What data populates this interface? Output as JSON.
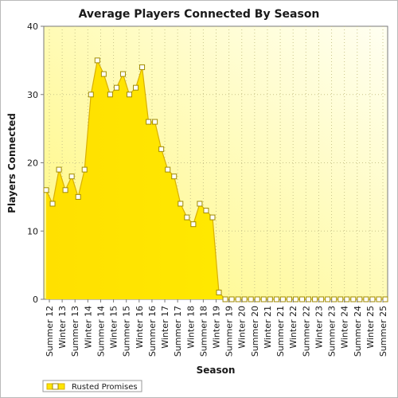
{
  "chart_data": {
    "type": "area",
    "title": "Average Players Connected By Season",
    "xlabel": "Season",
    "ylabel": "Players Connected",
    "ylim": [
      0,
      40
    ],
    "yticks": [
      0,
      10,
      20,
      30,
      40
    ],
    "grid": true,
    "legend_position": "bottom-left",
    "x_tick_labels": [
      "Summer 12",
      "Winter 13",
      "Summer 13",
      "Winter 14",
      "Summer 14",
      "Winter 15",
      "Summer 15",
      "Winter 16",
      "Summer 16",
      "Winter 17",
      "Summer 17",
      "Winter 18",
      "Summer 18",
      "Winter 19",
      "Summer 19",
      "Winter 20",
      "Summer 20",
      "Winter 21",
      "Summer 21",
      "Winter 22",
      "Summer 22",
      "Winter 23",
      "Summer 23",
      "Winter 24",
      "Summer 24",
      "Winter 25",
      "Summer 25"
    ],
    "series": [
      {
        "name": "Rusted Promises",
        "color": "#ffe600",
        "line_color": "#d9b000",
        "values": [
          16,
          14,
          19,
          16,
          18,
          15,
          19,
          30,
          35,
          33,
          30,
          31,
          33,
          30,
          31,
          34,
          26,
          26,
          22,
          19,
          18,
          14,
          12,
          11,
          14,
          13,
          12,
          1,
          0,
          0,
          0,
          0,
          0,
          0,
          0,
          0,
          0,
          0,
          0,
          0,
          0,
          0,
          0,
          0,
          0,
          0,
          0,
          0,
          0,
          0,
          0,
          0,
          0,
          0
        ]
      }
    ]
  }
}
